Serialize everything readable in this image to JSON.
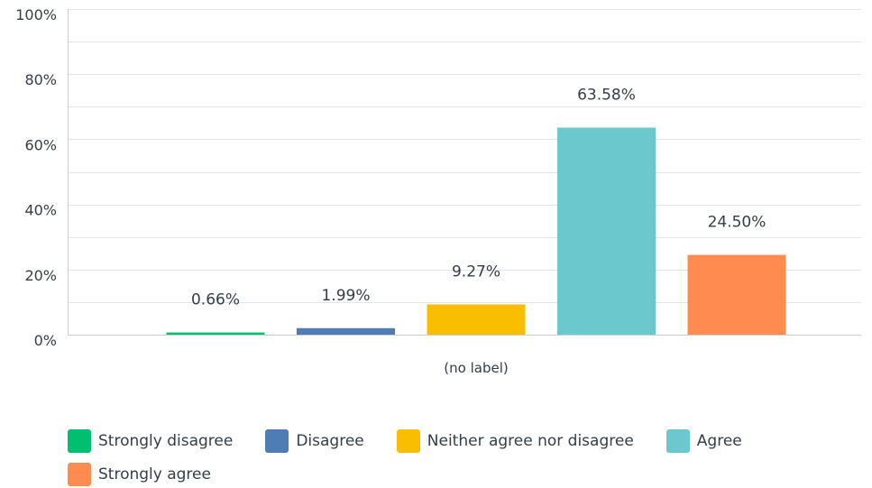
{
  "chart_data": {
    "type": "bar",
    "categories": [
      "(no label)"
    ],
    "series": [
      {
        "name": "Strongly disagree",
        "values": [
          0.66
        ],
        "label": "0.66%",
        "color": "#00bf6f"
      },
      {
        "name": "Disagree",
        "values": [
          1.99
        ],
        "label": "1.99%",
        "color": "#507cb6"
      },
      {
        "name": "Neither agree nor disagree",
        "values": [
          9.27
        ],
        "label": "9.27%",
        "color": "#f9be00"
      },
      {
        "name": "Agree",
        "values": [
          63.58
        ],
        "label": "63.58%",
        "color": "#6bc8cd"
      },
      {
        "name": "Strongly agree",
        "values": [
          24.5
        ],
        "label": "24.50%",
        "color": "#ff8b4f"
      }
    ],
    "y_ticks": [
      "0%",
      "20%",
      "40%",
      "60%",
      "80%",
      "100%"
    ],
    "ylim": [
      0,
      100
    ],
    "title": "",
    "xlabel": "",
    "ylabel": "",
    "grid": true,
    "legend_position": "bottom"
  }
}
